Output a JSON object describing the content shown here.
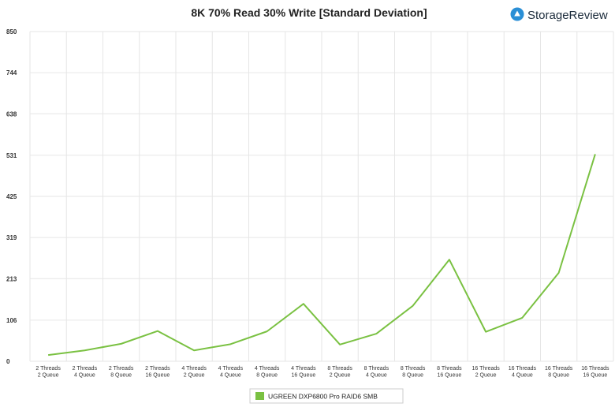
{
  "logo": {
    "text": "StorageReview",
    "icon": "storagereview-logo-icon",
    "color": "#2a8fd6"
  },
  "chart_data": {
    "type": "line",
    "title": "8K 70% Read 30% Write [Standard Deviation]",
    "xlabel": "",
    "ylabel": "",
    "categories": [
      [
        "2 Threads",
        "2 Queue"
      ],
      [
        "2 Threads",
        "4 Queue"
      ],
      [
        "2 Threads",
        "8 Queue"
      ],
      [
        "2 Threads",
        "16 Queue"
      ],
      [
        "4 Threads",
        "2 Queue"
      ],
      [
        "4 Threads",
        "4 Queue"
      ],
      [
        "4 Threads",
        "8 Queue"
      ],
      [
        "4 Threads",
        "16 Queue"
      ],
      [
        "8 Threads",
        "2 Queue"
      ],
      [
        "8 Threads",
        "4 Queue"
      ],
      [
        "8 Threads",
        "8 Queue"
      ],
      [
        "8 Threads",
        "16 Queue"
      ],
      [
        "16 Threads",
        "2 Queue"
      ],
      [
        "16 Threads",
        "4 Queue"
      ],
      [
        "16 Threads",
        "8 Queue"
      ],
      [
        "16 Threads",
        "16 Queue"
      ]
    ],
    "y_ticks": [
      "0",
      "106",
      "213",
      "319",
      "425",
      "531",
      "638",
      "744",
      "850"
    ],
    "ylim": [
      0,
      850
    ],
    "grid": true,
    "legend_position": "bottom-center",
    "series": [
      {
        "name": "UGREEN DXP6800 Pro RAID6 SMB",
        "color": "#7ac142",
        "values": [
          16,
          28,
          45,
          78,
          28,
          44,
          77,
          148,
          43,
          71,
          143,
          262,
          76,
          112,
          228,
          534
        ]
      }
    ]
  }
}
